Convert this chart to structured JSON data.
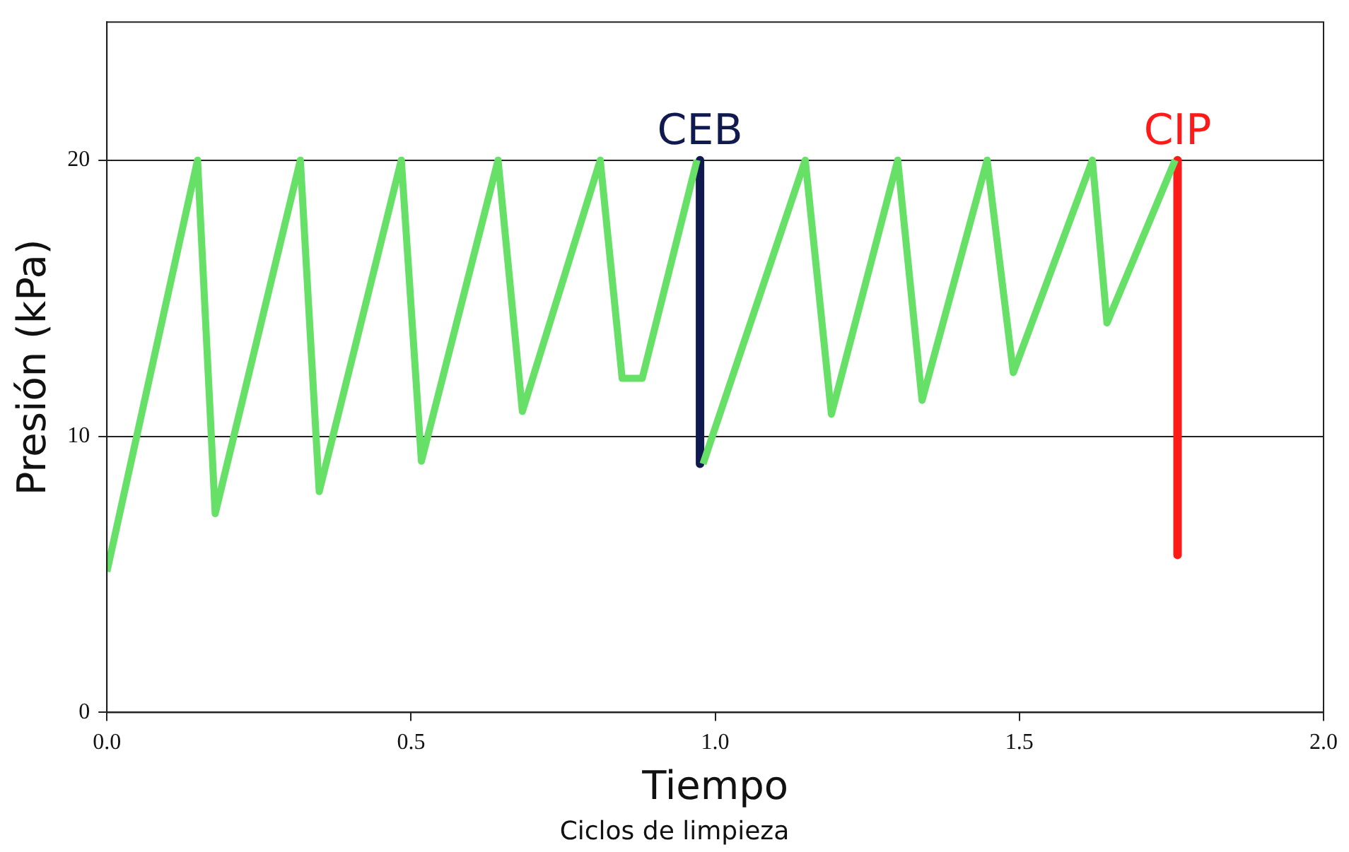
{
  "chart_data": {
    "type": "line",
    "xlabel": "Tiempo",
    "ylabel": "Presión (kPa)",
    "annotations": [
      "Ciclos de limpieza"
    ],
    "xlim": [
      0,
      2
    ],
    "xticks": [
      {
        "value": 0,
        "label": "0.0"
      },
      {
        "value": 0.5,
        "label": "0.5"
      },
      {
        "value": 1,
        "label": "1.0"
      },
      {
        "value": 1.5,
        "label": "1.5"
      },
      {
        "value": 2,
        "label": "2.0"
      }
    ],
    "ylim": [
      0,
      25
    ],
    "yticks": [
      0,
      10,
      20
    ],
    "grid": "y",
    "legend": false,
    "marker": "none",
    "series": [
      {
        "color": "#66e066",
        "x": [
          0,
          0.149,
          0.178,
          0.318,
          0.349,
          0.484,
          0.517,
          0.643,
          0.683,
          0.811,
          0.847,
          0.88,
          0.97
        ],
        "values": [
          5.1,
          20,
          7.2,
          20,
          8,
          20,
          9.1,
          20,
          10.9,
          20,
          12.1,
          12.1,
          20
        ]
      },
      {
        "color": "#66e066",
        "x": [
          0.98,
          1.148,
          1.191,
          1.3,
          1.34,
          1.447,
          1.49,
          1.62,
          1.644,
          1.756
        ],
        "values": [
          9,
          20,
          10.8,
          20,
          11.3,
          20,
          12.3,
          20,
          14.1,
          20
        ]
      },
      {
        "name": "CEB",
        "color": "#101a4e",
        "x": [
          0.975,
          0.975
        ],
        "values": [
          20,
          9
        ]
      },
      {
        "name": "CIP",
        "color": "#ff1a1a",
        "x": [
          1.76,
          1.76
        ],
        "values": [
          20,
          5.7
        ]
      }
    ]
  }
}
